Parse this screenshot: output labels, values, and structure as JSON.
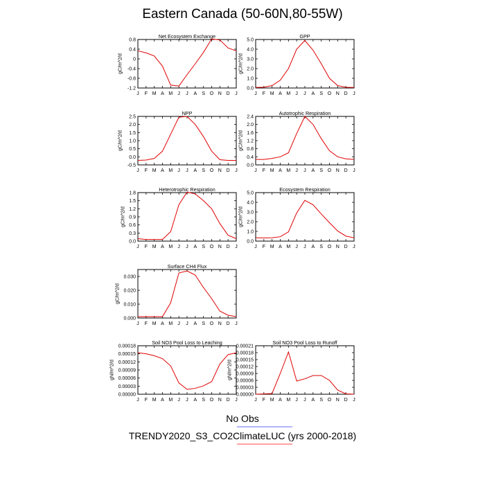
{
  "title": "Eastern Canada (50-60N,80-55W)",
  "legend": {
    "obs_label": "No Obs",
    "model_label": "TRENDY2020_S3_CO2ClimateLUC (yrs 2000-2018)",
    "obs_color": "#6a6aff",
    "model_color": "#ff4040"
  },
  "colors": {
    "series": "#e00000",
    "axis": "#000000"
  },
  "months": [
    "J",
    "F",
    "M",
    "A",
    "M",
    "J",
    "J",
    "A",
    "S",
    "O",
    "N",
    "D",
    "J"
  ],
  "chart_data": [
    {
      "type": "line",
      "title": "Net Ecosystem Exchange",
      "ylabel": "gC/m^2/d",
      "ylim": [
        -1.2,
        0.8
      ],
      "yticks": [
        "-1.2",
        "-0.8",
        "-0.4",
        "0",
        "0.4",
        "0.8"
      ],
      "ytick_values": [
        -1.2,
        -0.8,
        -0.4,
        0,
        0.4,
        0.8
      ],
      "values": [
        0.33,
        0.25,
        0.12,
        -0.3,
        -1.08,
        -1.12,
        -0.65,
        -0.2,
        0.27,
        0.82,
        0.78,
        0.45,
        0.33
      ]
    },
    {
      "type": "line",
      "title": "GPP",
      "ylabel": "gC/m^2/d",
      "ylim": [
        0,
        5
      ],
      "yticks": [
        "0.0",
        "1.0",
        "2.0",
        "3.0",
        "4.0",
        "5.0"
      ],
      "ytick_values": [
        0,
        1,
        2,
        3,
        4,
        5
      ],
      "values": [
        0.05,
        0.08,
        0.25,
        0.8,
        2.0,
        4.0,
        4.9,
        3.9,
        2.5,
        1.0,
        0.25,
        0.07,
        0.05
      ]
    },
    {
      "type": "line",
      "title": "NPP",
      "ylabel": "gC/m^2/d",
      "ylim": [
        -0.5,
        2.5
      ],
      "yticks": [
        "-0.5",
        "0.0",
        "0.5",
        "1.0",
        "1.5",
        "2.0",
        "2.5"
      ],
      "ytick_values": [
        -0.5,
        0,
        0.5,
        1,
        1.5,
        2,
        2.5
      ],
      "values": [
        -0.22,
        -0.2,
        -0.1,
        0.35,
        1.4,
        2.45,
        2.5,
        2.0,
        1.25,
        0.35,
        -0.18,
        -0.22,
        -0.22
      ]
    },
    {
      "type": "line",
      "title": "Autotrophic Respiration",
      "ylabel": "gC/m^2/d",
      "ylim": [
        0,
        2.4
      ],
      "yticks": [
        "0.0",
        "0.4",
        "0.8",
        "1.2",
        "1.6",
        "2.0",
        "2.4"
      ],
      "ytick_values": [
        0,
        0.4,
        0.8,
        1.2,
        1.6,
        2,
        2.4
      ],
      "values": [
        0.27,
        0.27,
        0.32,
        0.4,
        0.6,
        1.55,
        2.4,
        2.0,
        1.3,
        0.7,
        0.4,
        0.3,
        0.27
      ]
    },
    {
      "type": "line",
      "title": "Heterotrophic Respiration",
      "ylabel": "gC/m^2/d",
      "ylim": [
        0,
        1.8
      ],
      "yticks": [
        "0.0",
        "0.3",
        "0.6",
        "0.9",
        "1.2",
        "1.5",
        "1.8"
      ],
      "ytick_values": [
        0,
        0.3,
        0.6,
        0.9,
        1.2,
        1.5,
        1.8
      ],
      "values": [
        0.09,
        0.06,
        0.06,
        0.06,
        0.35,
        1.35,
        1.82,
        1.75,
        1.5,
        1.2,
        0.65,
        0.22,
        0.09
      ]
    },
    {
      "type": "line",
      "title": "Ecosystem Respiration",
      "ylabel": "gC/m^2/d",
      "ylim": [
        0,
        5
      ],
      "yticks": [
        "0.0",
        "1.0",
        "2.0",
        "3.0",
        "4.0",
        "5.0"
      ],
      "ytick_values": [
        0,
        1,
        2,
        3,
        4,
        5
      ],
      "values": [
        0.35,
        0.33,
        0.35,
        0.45,
        0.95,
        2.9,
        4.2,
        3.75,
        2.8,
        1.9,
        1.05,
        0.52,
        0.35
      ]
    },
    {
      "type": "line",
      "title": "Surface CH4 Flux",
      "ylabel": "gC/m^2/d",
      "ylim": [
        0,
        0.035
      ],
      "yticks": [
        "0.000",
        "0.010",
        "0.020",
        "0.030"
      ],
      "ytick_values": [
        0,
        0.01,
        0.02,
        0.03
      ],
      "values": [
        0.001,
        0.001,
        0.001,
        0.001,
        0.011,
        0.0325,
        0.034,
        0.031,
        0.022,
        0.014,
        0.005,
        0.002,
        0.001
      ]
    },
    null,
    {
      "type": "line",
      "title": "Soil NO3 Pool Loss to Leaching",
      "ylabel": "gN/m^2/d",
      "ylim": [
        0,
        0.00018
      ],
      "yticks": [
        "0.00000",
        "0.00003",
        "0.00006",
        "0.00009",
        "0.00012",
        "0.00015",
        "0.00018"
      ],
      "ytick_values": [
        0,
        3e-05,
        6e-05,
        9e-05,
        0.00012,
        0.00015,
        0.00018
      ],
      "values": [
        0.000154,
        0.00015,
        0.000143,
        0.000132,
        0.000105,
        4.2e-05,
        1.8e-05,
        2.2e-05,
        3.1e-05,
        4.7e-05,
        0.000112,
        0.000147,
        0.000154
      ]
    },
    {
      "type": "line",
      "title": "Soil NO3 Pool Loss to Runoff",
      "ylabel": "gN/m^2/d",
      "ylim": [
        0,
        0.00021
      ],
      "yticks": [
        "0.00000",
        "0.00003",
        "0.00006",
        "0.00009",
        "0.00012",
        "0.00015",
        "0.00018",
        "0.00021"
      ],
      "ytick_values": [
        0,
        3e-05,
        6e-05,
        9e-05,
        0.00012,
        0.00015,
        0.00018,
        0.00021
      ],
      "values": [
        0.0,
        1.5e-06,
        3e-06,
        9e-05,
        0.000183,
        5.7e-05,
        6.7e-05,
        8.1e-05,
        8.1e-05,
        6e-05,
        1.8e-05,
        1.5e-06,
        0.0
      ]
    }
  ]
}
